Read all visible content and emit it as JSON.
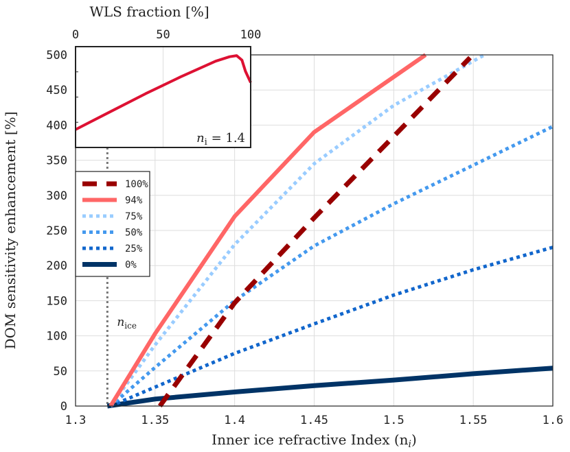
{
  "chart_data": [
    {
      "type": "line",
      "xlabel": "Inner ice refractive Index (n",
      "xlabel_sub": "i",
      "xlabel_tail": ")",
      "ylabel": "DOM sensitivity enhancement [%]",
      "xlim": [
        1.3,
        1.6
      ],
      "ylim": [
        0,
        500
      ],
      "xticks": [
        1.3,
        1.35,
        1.4,
        1.45,
        1.5,
        1.55,
        1.6
      ],
      "xtick_labels": [
        "1.3",
        "1.35",
        "1.4",
        "1.45",
        "1.5",
        "1.55",
        "1.6"
      ],
      "yticks": [
        0,
        50,
        100,
        150,
        200,
        250,
        300,
        350,
        400,
        450,
        500
      ],
      "ytick_labels": [
        "0",
        "50",
        "100",
        "150",
        "200",
        "250",
        "300",
        "350",
        "400",
        "450",
        "500"
      ],
      "grid": true,
      "legend_position": "left",
      "annotation": {
        "text": "n",
        "sub": "ice",
        "x": 1.32
      },
      "series": [
        {
          "name": "100%",
          "color": "#990000",
          "dash": "dashed",
          "points": [
            [
              1.353,
              0
            ],
            [
              1.4,
              147
            ],
            [
              1.45,
              268
            ],
            [
              1.5,
              384
            ],
            [
              1.548,
              496
            ]
          ]
        },
        {
          "name": "94%",
          "color": "#ff6666",
          "dash": "solid",
          "points": [
            [
              1.322,
              0
            ],
            [
              1.35,
              103
            ],
            [
              1.4,
              270
            ],
            [
              1.45,
              390
            ],
            [
              1.52,
              500
            ]
          ]
        },
        {
          "name": "75%",
          "color": "#99ccff",
          "dash": "dotted",
          "points": [
            [
              1.322,
              0
            ],
            [
              1.35,
              87
            ],
            [
              1.4,
              230
            ],
            [
              1.45,
              345
            ],
            [
              1.5,
              428
            ],
            [
              1.557,
              500
            ]
          ]
        },
        {
          "name": "50%",
          "color": "#4499ee",
          "dash": "dotted",
          "points": [
            [
              1.322,
              0
            ],
            [
              1.35,
              55
            ],
            [
              1.4,
              150
            ],
            [
              1.45,
              228
            ],
            [
              1.5,
              288
            ],
            [
              1.55,
              343
            ],
            [
              1.6,
              398
            ]
          ]
        },
        {
          "name": "25%",
          "color": "#1166cc",
          "dash": "dotted",
          "points": [
            [
              1.322,
              0
            ],
            [
              1.35,
              27
            ],
            [
              1.4,
              75
            ],
            [
              1.45,
              117
            ],
            [
              1.5,
              158
            ],
            [
              1.55,
              194
            ],
            [
              1.6,
              226
            ]
          ]
        },
        {
          "name": "0%",
          "color": "#003366",
          "dash": "solid",
          "points": [
            [
              1.32,
              0
            ],
            [
              1.35,
              10
            ],
            [
              1.4,
              20
            ],
            [
              1.45,
              29
            ],
            [
              1.5,
              37
            ],
            [
              1.55,
              46
            ],
            [
              1.6,
              54
            ]
          ]
        }
      ]
    },
    {
      "type": "line",
      "title": "WLS fraction [%]",
      "xlim": [
        0,
        100
      ],
      "ylim": [
        360,
        450
      ],
      "xticks": [
        0,
        50,
        100
      ],
      "xtick_labels": [
        "0",
        "50",
        "100"
      ],
      "grid": true,
      "annotation": {
        "text": "n",
        "sub": "i",
        "tail": " = 1.4"
      },
      "series": [
        {
          "color": "#dd1133",
          "points": [
            [
              0,
              376
            ],
            [
              20,
              392
            ],
            [
              40,
              408
            ],
            [
              60,
              423
            ],
            [
              80,
              437
            ],
            [
              88,
              441
            ],
            [
              92,
              442
            ],
            [
              95,
              438
            ],
            [
              97,
              428
            ],
            [
              100,
              418
            ]
          ]
        }
      ]
    }
  ]
}
